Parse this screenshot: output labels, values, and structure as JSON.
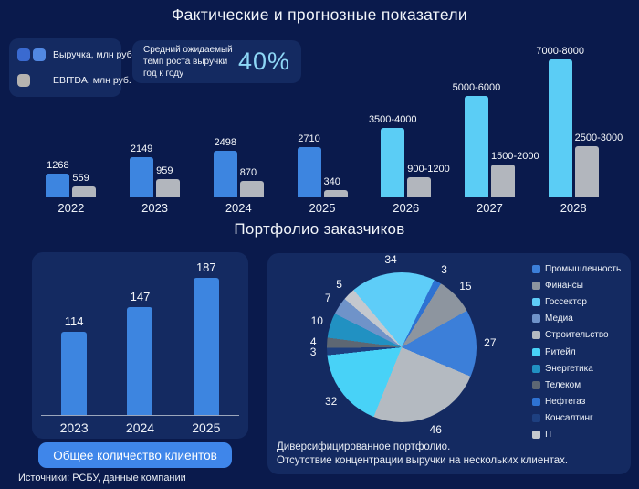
{
  "page": {
    "title": "Фактические и прогнозные показатели",
    "section2_title": "Портфолио заказчиков",
    "sources": "Источники: РСБУ, данные компании"
  },
  "colors": {
    "background": "#0a1a4c",
    "panel": "#142a61",
    "revenue_actual": "#3d85e0",
    "revenue_forecast": "#5bcdf5",
    "ebitda": "#b2b6bd",
    "button": "#3f86ea",
    "growth_accent": "#8ed7f6",
    "legend_revenue_swatch_1": "#3a6ad0",
    "legend_revenue_swatch_2": "#5188e2",
    "legend_ebitda_swatch": "#b5b3b0",
    "axis_line": "#bec6d2"
  },
  "legend_card": {
    "revenue_label": "Выручка, млн руб.",
    "ebitda_label": "EBITDA, млн руб."
  },
  "growth_card": {
    "text": "Средний ожидаемый темп роста выручки год к году",
    "value": "40%"
  },
  "clients_button": "Общее количество клиентов",
  "portfolio_caption": [
    "Диверсифицированное портфолио.",
    "Отсутствие концентрации выручки на нескольких клиентах."
  ],
  "chart_data": [
    {
      "type": "bar",
      "title": "Фактические и прогнозные показатели",
      "categories": [
        "2022",
        "2023",
        "2024",
        "2025",
        "2026",
        "2027",
        "2028"
      ],
      "series": [
        {
          "name": "Выручка, млн руб.",
          "labels": [
            "1268",
            "2149",
            "2498",
            "2710",
            "3500-4000",
            "5000-6000",
            "7000-8000"
          ],
          "values": [
            1268,
            2149,
            2498,
            2710,
            3750,
            5500,
            7500
          ]
        },
        {
          "name": "EBITDA, млн руб.",
          "labels": [
            "559",
            "959",
            "870",
            "340",
            "900-1200",
            "1500-2000",
            "2500-3000"
          ],
          "values": [
            559,
            959,
            870,
            340,
            1050,
            1750,
            2750
          ]
        }
      ],
      "forecast_from_index": 4,
      "annotation": "Средний ожидаемый темп роста выручки год к году: 40%",
      "legend_position": "top-left",
      "grid": false
    },
    {
      "type": "bar",
      "title": "Общее количество клиентов",
      "categories": [
        "2023",
        "2024",
        "2025"
      ],
      "values": [
        114,
        147,
        187
      ],
      "grid": false
    },
    {
      "type": "pie",
      "title": "Портфолио заказчиков",
      "start_angle_deg": -40,
      "total": 186,
      "slices": [
        {
          "label": "Госсектор",
          "value": 34,
          "color": "#5ecdf8"
        },
        {
          "label": "Нефтегаз",
          "value": 3,
          "color": "#2e72d2"
        },
        {
          "label": "Финансы",
          "value": 15,
          "color": "#8d959f"
        },
        {
          "label": "Промышленность",
          "value": 27,
          "color": "#3c7fd9"
        },
        {
          "label": "Строительство",
          "value": 46,
          "color": "#b4bac1"
        },
        {
          "label": "Ритейл",
          "value": 32,
          "color": "#48d2f7"
        },
        {
          "label": "Консалтинг",
          "value": 3,
          "color": "#1e4080"
        },
        {
          "label": "Телеком",
          "value": 4,
          "color": "#5d6773"
        },
        {
          "label": "Энергетика",
          "value": 10,
          "color": "#2191c2"
        },
        {
          "label": "Медиа",
          "value": 7,
          "color": "#6f93c9"
        },
        {
          "label": "IT",
          "value": 5,
          "color": "#c4c8ce"
        }
      ],
      "legend_order": [
        "Промышленность",
        "Финансы",
        "Госсектор",
        "Медиа",
        "Строительство",
        "Ритейл",
        "Энергетика",
        "Телеком",
        "Нефтегаз",
        "Консалтинг",
        "IT"
      ],
      "legend_position": "right"
    }
  ]
}
